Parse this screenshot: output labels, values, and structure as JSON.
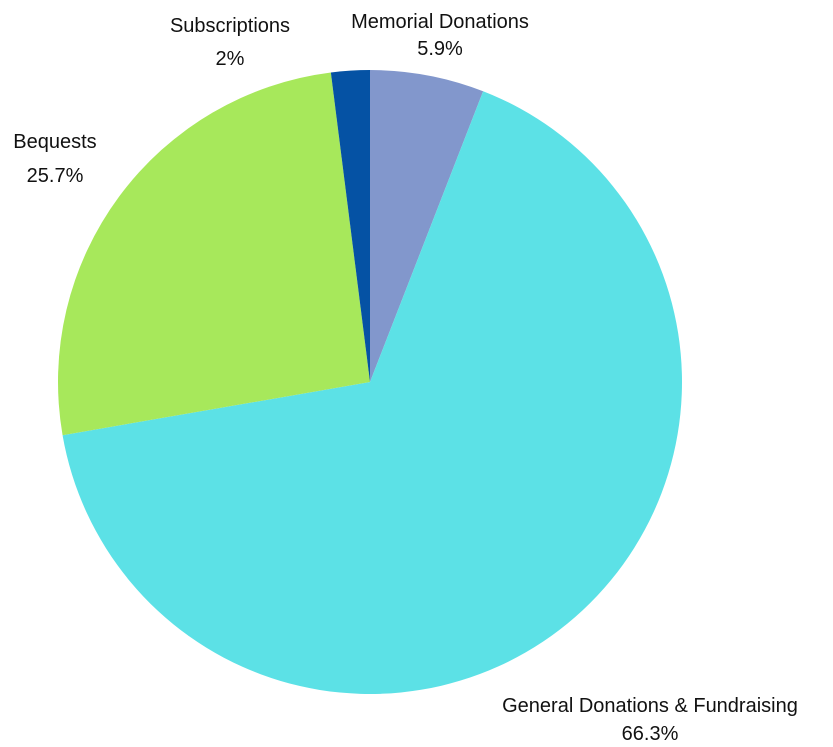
{
  "chart_data": {
    "type": "pie",
    "title": "",
    "start_angle_deg": 0,
    "direction": "clockwise",
    "slices": [
      {
        "label": "Memorial Donations",
        "value": 5.9,
        "display": "5.9%",
        "color": "#8297cc"
      },
      {
        "label": "General Donations & Fundraising",
        "value": 66.3,
        "display": "66.3%",
        "color": "#5ce1e6"
      },
      {
        "label": "Bequests",
        "value": 25.7,
        "display": "25.7%",
        "color": "#a7e85b"
      },
      {
        "label": "Subscriptions",
        "value": 2,
        "display": "2%",
        "color": "#0552a4"
      }
    ],
    "legend": "none",
    "data_labels": "outside"
  }
}
